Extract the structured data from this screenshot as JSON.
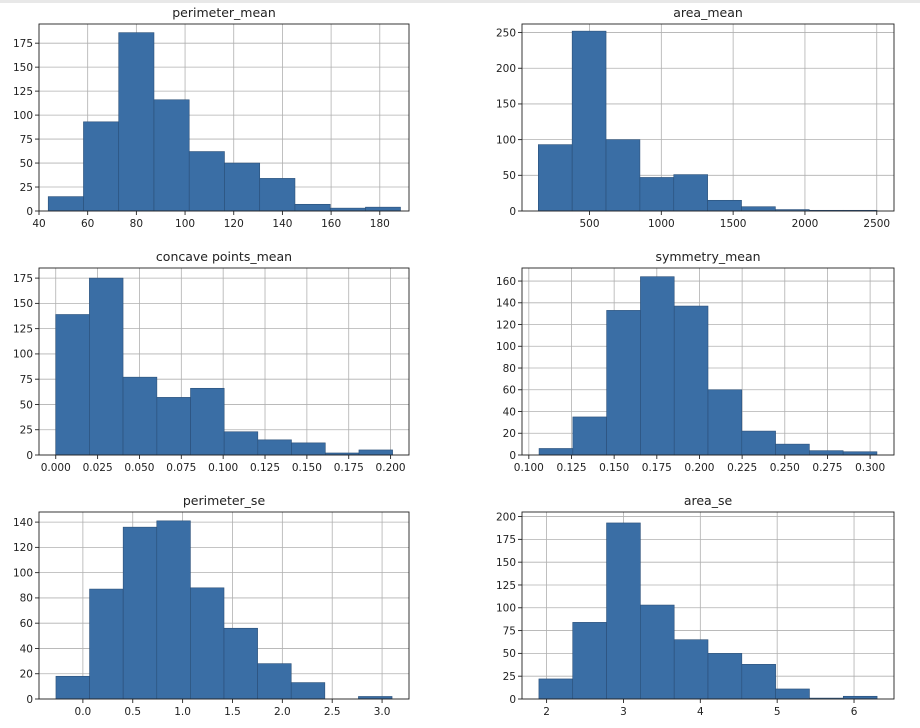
{
  "style": {
    "bar_color": "#3a6ea5",
    "bar_edge": "#2a4f78",
    "grid_color": "#b0b0b0",
    "axis_color": "#222222"
  },
  "chart_data": [
    {
      "type": "bar",
      "title": "perimeter_mean",
      "bin_edges": [
        43.79,
        58.27,
        72.75,
        87.23,
        101.71,
        116.19,
        130.67,
        145.15,
        159.63,
        174.11,
        188.5
      ],
      "values": [
        15,
        93,
        186,
        116,
        62,
        50,
        34,
        7,
        3,
        4
      ],
      "xlim": [
        40,
        192
      ],
      "ylim": [
        0,
        195
      ],
      "xticks": [
        40,
        60,
        80,
        100,
        120,
        140,
        160,
        180
      ],
      "xtick_labels": [
        "40",
        "60",
        "80",
        "100",
        "120",
        "140",
        "160",
        "180"
      ],
      "yticks": [
        0,
        25,
        50,
        75,
        100,
        125,
        150,
        175
      ],
      "ytick_labels": [
        "0",
        "25",
        "50",
        "75",
        "100",
        "125",
        "150",
        "175"
      ],
      "grid": true
    },
    {
      "type": "bar",
      "title": "area_mean",
      "bin_edges": [
        143.5,
        379.3,
        615.1,
        850.9,
        1086.7,
        1322.5,
        1558.3,
        1794.1,
        2029.9,
        2265.7,
        2501.5
      ],
      "values": [
        93,
        252,
        100,
        47,
        51,
        15,
        6,
        2,
        1,
        1
      ],
      "xlim": [
        30,
        2620
      ],
      "ylim": [
        0,
        262
      ],
      "xticks": [
        500,
        1000,
        1500,
        2000,
        2500
      ],
      "xtick_labels": [
        "500",
        "1000",
        "1500",
        "2000",
        "2500"
      ],
      "yticks": [
        0,
        50,
        100,
        150,
        200,
        250
      ],
      "ytick_labels": [
        "0",
        "50",
        "100",
        "150",
        "200",
        "250"
      ],
      "grid": true
    },
    {
      "type": "bar",
      "title": "concave points_mean",
      "bin_edges": [
        0.0,
        0.0201,
        0.0402,
        0.0604,
        0.0805,
        0.1006,
        0.1207,
        0.1408,
        0.161,
        0.1811,
        0.2012
      ],
      "values": [
        139,
        175,
        77,
        57,
        66,
        23,
        15,
        12,
        2,
        5
      ],
      "xlim": [
        -0.01,
        0.211
      ],
      "ylim": [
        0,
        185
      ],
      "xticks": [
        0.0,
        0.025,
        0.05,
        0.075,
        0.1,
        0.125,
        0.15,
        0.175,
        0.2
      ],
      "xtick_labels": [
        "0.000",
        "0.025",
        "0.050",
        "0.075",
        "0.100",
        "0.125",
        "0.150",
        "0.175",
        "0.200"
      ],
      "yticks": [
        0,
        25,
        50,
        75,
        100,
        125,
        150,
        175
      ],
      "ytick_labels": [
        "0",
        "25",
        "50",
        "75",
        "100",
        "125",
        "150",
        "175"
      ],
      "grid": true
    },
    {
      "type": "bar",
      "title": "symmetry_mean",
      "bin_edges": [
        0.106,
        0.1258,
        0.1456,
        0.1654,
        0.1852,
        0.205,
        0.2248,
        0.2446,
        0.2644,
        0.2842,
        0.304
      ],
      "values": [
        6,
        35,
        133,
        164,
        137,
        60,
        22,
        10,
        4,
        3
      ],
      "xlim": [
        0.096,
        0.314
      ],
      "ylim": [
        0,
        172
      ],
      "xticks": [
        0.1,
        0.125,
        0.15,
        0.175,
        0.2,
        0.225,
        0.25,
        0.275,
        0.3
      ],
      "xtick_labels": [
        "0.100",
        "0.125",
        "0.150",
        "0.175",
        "0.200",
        "0.225",
        "0.250",
        "0.275",
        "0.300"
      ],
      "yticks": [
        0,
        20,
        40,
        60,
        80,
        100,
        120,
        140,
        160
      ],
      "ytick_labels": [
        "0",
        "20",
        "40",
        "60",
        "80",
        "100",
        "120",
        "140",
        "160"
      ],
      "grid": true
    },
    {
      "type": "bar",
      "title": "perimeter_se",
      "bin_edges": [
        -0.27,
        0.067,
        0.404,
        0.741,
        1.078,
        1.415,
        1.752,
        2.089,
        2.426,
        2.763,
        3.1
      ],
      "values": [
        18,
        87,
        136,
        141,
        88,
        56,
        28,
        13,
        0,
        2
      ],
      "xlim": [
        -0.44,
        3.27
      ],
      "ylim": [
        0,
        148
      ],
      "xticks": [
        0.0,
        0.5,
        1.0,
        1.5,
        2.0,
        2.5,
        3.0
      ],
      "xtick_labels": [
        "0.0",
        "0.5",
        "1.0",
        "1.5",
        "2.0",
        "2.5",
        "3.0"
      ],
      "yticks": [
        0,
        20,
        40,
        60,
        80,
        100,
        120,
        140
      ],
      "ytick_labels": [
        "0",
        "20",
        "40",
        "60",
        "80",
        "100",
        "120",
        "140"
      ],
      "grid": true
    },
    {
      "type": "bar",
      "title": "area_se",
      "bin_edges": [
        1.9,
        2.34,
        2.78,
        3.22,
        3.66,
        4.1,
        4.54,
        4.98,
        5.42,
        5.86,
        6.3
      ],
      "values": [
        22,
        84,
        193,
        103,
        65,
        50,
        38,
        11,
        1,
        3
      ],
      "xlim": [
        1.68,
        6.52
      ],
      "ylim": [
        0,
        205
      ],
      "xticks": [
        2,
        3,
        4,
        5,
        6
      ],
      "xtick_labels": [
        "2",
        "3",
        "4",
        "5",
        "6"
      ],
      "yticks": [
        0,
        25,
        50,
        75,
        100,
        125,
        150,
        175,
        200
      ],
      "ytick_labels": [
        "0",
        "25",
        "50",
        "75",
        "100",
        "125",
        "150",
        "175",
        "200"
      ],
      "grid": true
    }
  ]
}
